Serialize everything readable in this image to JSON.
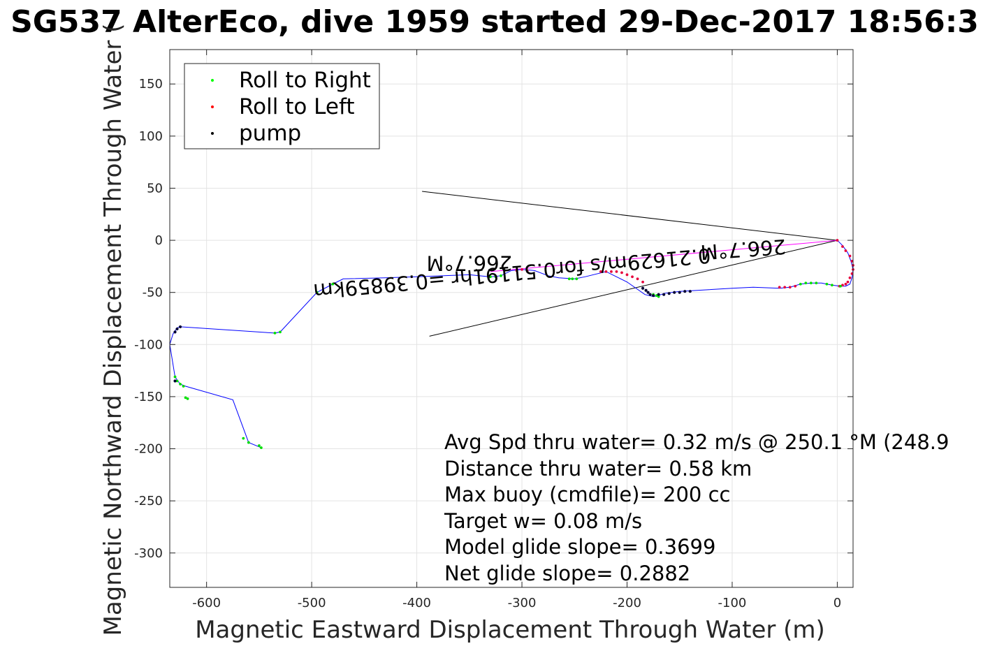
{
  "chart_data": {
    "type": "scatter",
    "title": "SG537 AlterEco, dive 1959 started 29-Dec-2017 18:56:3",
    "xlabel": "Magnetic Eastward Displacement Through Water (m)",
    "ylabel": "Magnetic Northward Displacement Through Water (",
    "xlim": [
      -635,
      15
    ],
    "ylim": [
      -333,
      183
    ],
    "xticks": [
      -600,
      -500,
      -400,
      -300,
      -200,
      -100,
      0
    ],
    "xtick_labels": [
      "-600",
      "-500",
      "-400",
      "-300",
      "-200",
      "-100",
      "0"
    ],
    "yticks": [
      150,
      100,
      50,
      0,
      -50,
      -100,
      -150,
      -200,
      -250,
      -300
    ],
    "ytick_labels": [
      "150",
      "100",
      "50",
      "0",
      "-50",
      "-100",
      "-150",
      "-200",
      "-250",
      "-300"
    ],
    "grid": true,
    "legend_position": "top-left",
    "legend": [
      {
        "label": "Roll to Right",
        "color": "#00ff00"
      },
      {
        "label": "Roll to Left",
        "color": "#ff0000"
      },
      {
        "label": "pump",
        "color": "#000000"
      }
    ],
    "track": {
      "name": "track",
      "color": "#0000ff",
      "x": [
        0,
        5,
        10,
        13,
        15,
        14,
        12,
        8,
        3,
        -5,
        -15,
        -25,
        -35,
        -45,
        -55,
        -80,
        -100,
        -150,
        -165,
        -170,
        -175,
        -183,
        -200,
        -220,
        -240,
        -250,
        -265,
        -275,
        -288,
        -300,
        -310,
        -320,
        -330,
        -350,
        -400,
        -430,
        -470,
        -480,
        -495,
        -530,
        -535,
        -625,
        -628,
        -632,
        -635,
        -630,
        -628,
        -625,
        -620,
        -575,
        -560,
        -548
      ],
      "y": [
        0,
        -5,
        -12,
        -20,
        -28,
        -36,
        -42,
        -44,
        -44,
        -43,
        -41,
        -41,
        -42,
        -45,
        -46,
        -45,
        -46,
        -49,
        -51,
        -53,
        -54,
        -52,
        -40,
        -30,
        -35,
        -37,
        -36,
        -34,
        -29,
        -28,
        -29,
        -34,
        -35,
        -33,
        -35,
        -36,
        -37,
        -42,
        -50,
        -88,
        -89,
        -83,
        -84,
        -90,
        -100,
        -131,
        -134,
        -138,
        -140,
        -153,
        -194,
        -199
      ]
    },
    "roll_right": {
      "x": [
        3,
        -5,
        -10,
        -20,
        -25,
        -30,
        -35,
        -170,
        -172,
        -175,
        -248,
        -252,
        -255,
        -320,
        -325,
        -330,
        -480,
        -495,
        -530,
        -535,
        -560,
        -550,
        -548,
        -565,
        -618,
        -620,
        -622,
        -625,
        -628,
        -630
      ],
      "y": [
        -44,
        -43,
        -42,
        -41,
        -41,
        -41,
        -42,
        -54,
        -53,
        -52,
        -37,
        -37,
        -37,
        -34,
        -35,
        -35,
        -42,
        -50,
        -88,
        -89,
        -194,
        -197,
        -199,
        -190,
        -152,
        -151,
        -140,
        -138,
        -135,
        -131
      ]
    },
    "roll_left": {
      "x": [
        0,
        5,
        8,
        12,
        14,
        15,
        15,
        14,
        12,
        10,
        8,
        5,
        2,
        -50,
        -55,
        -45,
        -40,
        -185,
        -190,
        -195,
        -200,
        -205,
        -210,
        -215,
        -220,
        -225,
        -295,
        -300,
        -305
      ],
      "y": [
        0,
        -6,
        -10,
        -15,
        -20,
        -24,
        -28,
        -32,
        -36,
        -40,
        -42,
        -43,
        -44,
        -45,
        -45,
        -45,
        -44,
        -40,
        -37,
        -35,
        -33,
        -31,
        -30,
        -30,
        -30,
        -30,
        -29,
        -28,
        -29
      ]
    },
    "pump": {
      "x": [
        -140,
        -145,
        -150,
        -155,
        -160,
        -165,
        -170,
        -175,
        -178,
        -180,
        -182,
        -185,
        -625,
        -628,
        -630,
        -630
      ],
      "y": [
        -49,
        -49,
        -50,
        -50,
        -51,
        -52,
        -52,
        -53,
        -52,
        -50,
        -48,
        -46,
        -83,
        -85,
        -88,
        -135
      ]
    },
    "heading_line": {
      "color": "#ff00ff",
      "x": [
        0,
        -330
      ],
      "y": [
        0,
        -30
      ]
    },
    "wedge_lines": [
      {
        "x": [
          0,
          -395
        ],
        "y": [
          0,
          47
        ]
      },
      {
        "x": [
          0,
          -388
        ],
        "y": [
          0,
          -92
        ]
      }
    ],
    "annotations": [
      {
        "text": "0.21629m/s for0.51191hr =0.39859km",
        "x": -310,
        "y": -25,
        "rotation_deg": 174.8
      },
      {
        "text": "266.7°M",
        "x": -350,
        "y": -15,
        "rotation_deg": 180
      },
      {
        "text": "266.7°M",
        "x": -90,
        "y": -2,
        "rotation_deg": 176
      }
    ],
    "info_lines": [
      "Avg Spd thru water=  0.32 m/s @ 250.1 °M (248.9",
      "Distance thru water=  0.58 km",
      "Max buoy (cmdfile)= 200 cc",
      "Target w= 0.08 m/s",
      "Model glide slope= 0.3699",
      "Net glide slope= 0.2882"
    ]
  }
}
